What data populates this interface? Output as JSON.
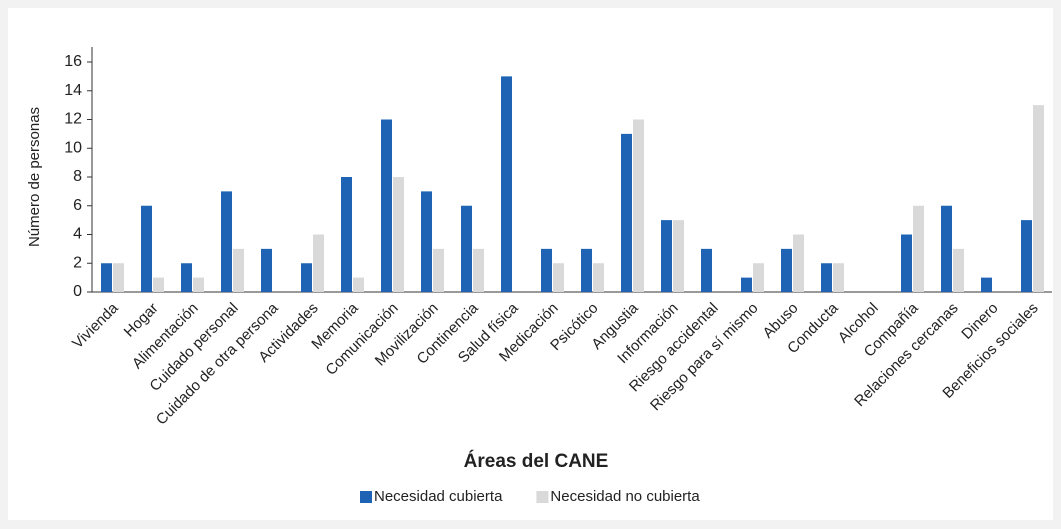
{
  "chart_data": {
    "type": "bar",
    "x_label": "Áreas del CANE",
    "y_label": "Número de personas",
    "categories": [
      "Vivienda",
      "Hogar",
      "Alimentación",
      "Cuidado personal",
      "Cuidado de otra persona",
      "Actividades",
      "Memoria",
      "Comunicación",
      "Movilización",
      "Continencia",
      "Salud física",
      "Medicación",
      "Psicótico",
      "Angustia",
      "Información",
      "Riesgo accidental",
      "Riesgo para sí mismo",
      "Abuso",
      "Conducta",
      "Alcohol",
      "Compañía",
      "Relaciones cercanas",
      "Dinero",
      "Beneficios sociales"
    ],
    "series": [
      {
        "name": "Necesidad cubierta",
        "color": "#1f64b4",
        "values": [
          2,
          6,
          2,
          7,
          3,
          2,
          8,
          12,
          7,
          6,
          15,
          3,
          3,
          11,
          5,
          3,
          1,
          3,
          2,
          0,
          4,
          6,
          1,
          5
        ]
      },
      {
        "name": "Necesidad no cubierta",
        "color": "#d9d9d9",
        "values": [
          2,
          1,
          1,
          3,
          0,
          4,
          1,
          8,
          3,
          3,
          0,
          2,
          2,
          12,
          5,
          0,
          2,
          4,
          2,
          0,
          6,
          3,
          0,
          13
        ]
      }
    ],
    "ylim": [
      0,
      16
    ],
    "yticks": [
      0,
      2,
      4,
      6,
      8,
      10,
      12,
      14,
      16
    ],
    "grid": false,
    "legend": "bottom"
  }
}
